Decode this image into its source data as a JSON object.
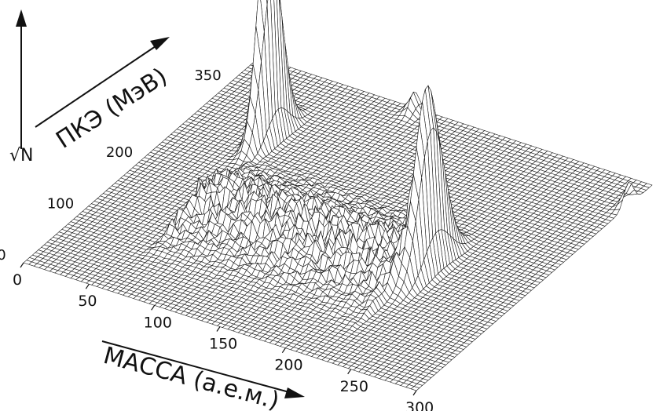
{
  "chart_data": {
    "type": "surface3d",
    "title": "",
    "x_axis": {
      "label": "МАССА (а.е.м.)",
      "range": [
        0,
        300
      ],
      "ticks": [
        0,
        50,
        100,
        150,
        200,
        250,
        300
      ]
    },
    "y_axis": {
      "label": "ПКЭ (МэВ)",
      "range": [
        0,
        400
      ],
      "ticks": [
        0,
        100,
        200,
        350
      ]
    },
    "z_axis": {
      "label": "√N"
    },
    "peaks": [
      {
        "mass": 57,
        "tke": 290,
        "height": 1.0,
        "width_mass": 3.5,
        "width_tke": 18
      },
      {
        "mass": 229,
        "tke": 178,
        "height": 0.8,
        "width_mass": 4.0,
        "width_tke": 22
      }
    ],
    "ridge": {
      "mass_from": 60,
      "mass_to": 225,
      "tke": 160,
      "height": 0.12
    },
    "small_peaks": [
      {
        "mass": 120,
        "tke": 395,
        "height": 0.08
      },
      {
        "mass": 300,
        "tke": 360,
        "height": 0.1
      }
    ],
    "grid": true,
    "legend": "none"
  }
}
